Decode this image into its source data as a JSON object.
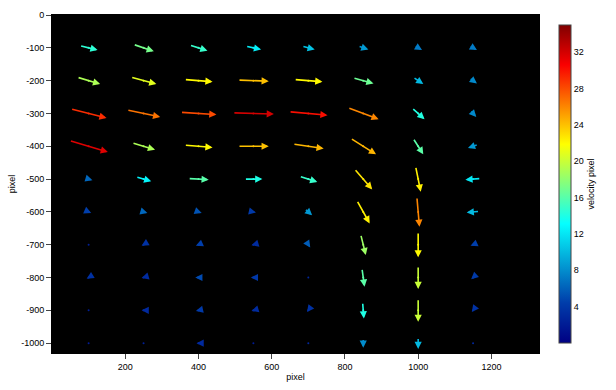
{
  "chart_data": {
    "type": "quiver",
    "x_label": "pixel",
    "y_label": "pixel",
    "xlim": [
      0,
      1330
    ],
    "ylim": [
      -1030,
      0
    ],
    "xticks": [
      200,
      400,
      600,
      800,
      1000,
      1200
    ],
    "yticks": [
      0,
      -100,
      -200,
      -300,
      -400,
      -500,
      -600,
      -700,
      -800,
      -900,
      -1000
    ],
    "color": "jet",
    "colorbar": {
      "title": "velocity pixel",
      "range": [
        0,
        35
      ],
      "ticks": [
        4,
        8,
        12,
        16,
        20,
        24,
        28,
        32
      ]
    },
    "x": [
      100,
      250,
      400,
      550,
      700,
      850,
      1000,
      1150,
      100,
      250,
      400,
      550,
      700,
      850,
      1000,
      1150,
      100,
      250,
      400,
      550,
      700,
      850,
      1000,
      1150,
      100,
      250,
      400,
      550,
      700,
      850,
      1000,
      1150,
      100,
      250,
      400,
      550,
      700,
      850,
      1000,
      1150,
      100,
      250,
      400,
      550,
      700,
      850,
      1000,
      1150,
      100,
      250,
      400,
      550,
      700,
      850,
      1000,
      1150,
      100,
      250,
      400,
      550,
      700,
      850,
      1000,
      1150,
      100,
      250,
      400,
      550,
      700,
      850,
      1000,
      1150,
      100,
      250,
      400,
      550,
      700,
      850,
      1000,
      1150
    ],
    "y": [
      -100,
      -100,
      -100,
      -100,
      -100,
      -100,
      -100,
      -100,
      -200,
      -200,
      -200,
      -200,
      -200,
      -200,
      -200,
      -200,
      -300,
      -300,
      -300,
      -300,
      -300,
      -300,
      -300,
      -300,
      -400,
      -400,
      -400,
      -400,
      -400,
      -400,
      -400,
      -400,
      -500,
      -500,
      -500,
      -500,
      -500,
      -500,
      -500,
      -500,
      -600,
      -600,
      -600,
      -600,
      -600,
      -600,
      -600,
      -600,
      -700,
      -700,
      -700,
      -700,
      -700,
      -700,
      -700,
      -700,
      -800,
      -800,
      -800,
      -800,
      -800,
      -800,
      -800,
      -800,
      -900,
      -900,
      -900,
      -900,
      -900,
      -900,
      -900,
      -900,
      -1000,
      -1000,
      -1000,
      -1000,
      -1000,
      -1000,
      -1000,
      -1000
    ],
    "u": [
      14,
      16,
      14,
      12,
      10,
      8,
      6,
      6,
      18,
      20,
      22,
      24,
      22,
      16,
      8,
      6,
      28,
      26,
      28,
      32,
      30,
      24,
      10,
      5,
      30,
      18,
      22,
      24,
      24,
      20,
      8,
      -8,
      6,
      12,
      16,
      14,
      14,
      14,
      4,
      -12,
      4,
      6,
      5,
      4,
      6,
      10,
      2,
      -10,
      -2,
      -3,
      -4,
      -3,
      3,
      4,
      0,
      -4,
      -3,
      -3,
      -5,
      -4,
      -2,
      2,
      0,
      -3,
      -2,
      -3,
      -4,
      -3,
      -2,
      1,
      0,
      -2,
      -2,
      -2,
      -3,
      -2,
      -2,
      0,
      0,
      -2
    ],
    "v": [
      -4,
      -6,
      -5,
      -3,
      -3,
      -3,
      -4,
      -4,
      -6,
      -6,
      -2,
      -1,
      -2,
      -5,
      -6,
      -5,
      -8,
      -6,
      -2,
      -1,
      -3,
      -10,
      -10,
      -6,
      -10,
      -6,
      -2,
      0,
      -4,
      -14,
      -14,
      -3,
      -2,
      -4,
      -1,
      0,
      -5,
      -18,
      -22,
      -1,
      -2,
      -2,
      -2,
      -1,
      -6,
      -20,
      -26,
      -1,
      -1,
      -2,
      -2,
      -1,
      -5,
      -18,
      -22,
      -2,
      -2,
      -1,
      0,
      0,
      -2,
      -16,
      -20,
      -3,
      -1,
      0,
      -1,
      -1,
      -3,
      -14,
      -20,
      -3,
      0,
      -1,
      0,
      0,
      -2,
      -8,
      -10,
      -2
    ]
  }
}
